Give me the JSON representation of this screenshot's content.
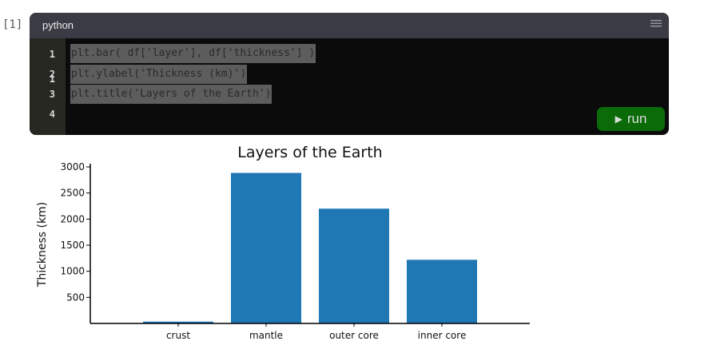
{
  "prompt": "[1]",
  "cell": {
    "language": "python",
    "menu_icon": "hamburger-menu-icon",
    "line_numbers": [
      "1",
      "2",
      "3",
      "4"
    ],
    "code_lines": [
      "plt.bar( df['layer'], df['thickness'] )",
      "plt.ylabel('Thickness (km)')",
      "plt.title('Layers of the Earth')"
    ],
    "run_label": "run",
    "run_icon": "play-icon",
    "colors": {
      "header": "#3b3b45",
      "gutter": "#272822",
      "editor": "#0b0b0b",
      "selection": "#5d5d5d",
      "run": "#0a6b08"
    }
  },
  "chart_data": {
    "type": "bar",
    "title": "Layers of the Earth",
    "xlabel": "",
    "ylabel": "Thickness (km)",
    "categories": [
      "crust",
      "mantle",
      "outer core",
      "inner core"
    ],
    "values": [
      35,
      2885,
      2200,
      1220
    ],
    "ylim": [
      0,
      3000
    ],
    "yticks": [
      500,
      1000,
      1500,
      2000,
      2500,
      3000
    ],
    "bar_color": "#1f77b4",
    "grid": false
  }
}
